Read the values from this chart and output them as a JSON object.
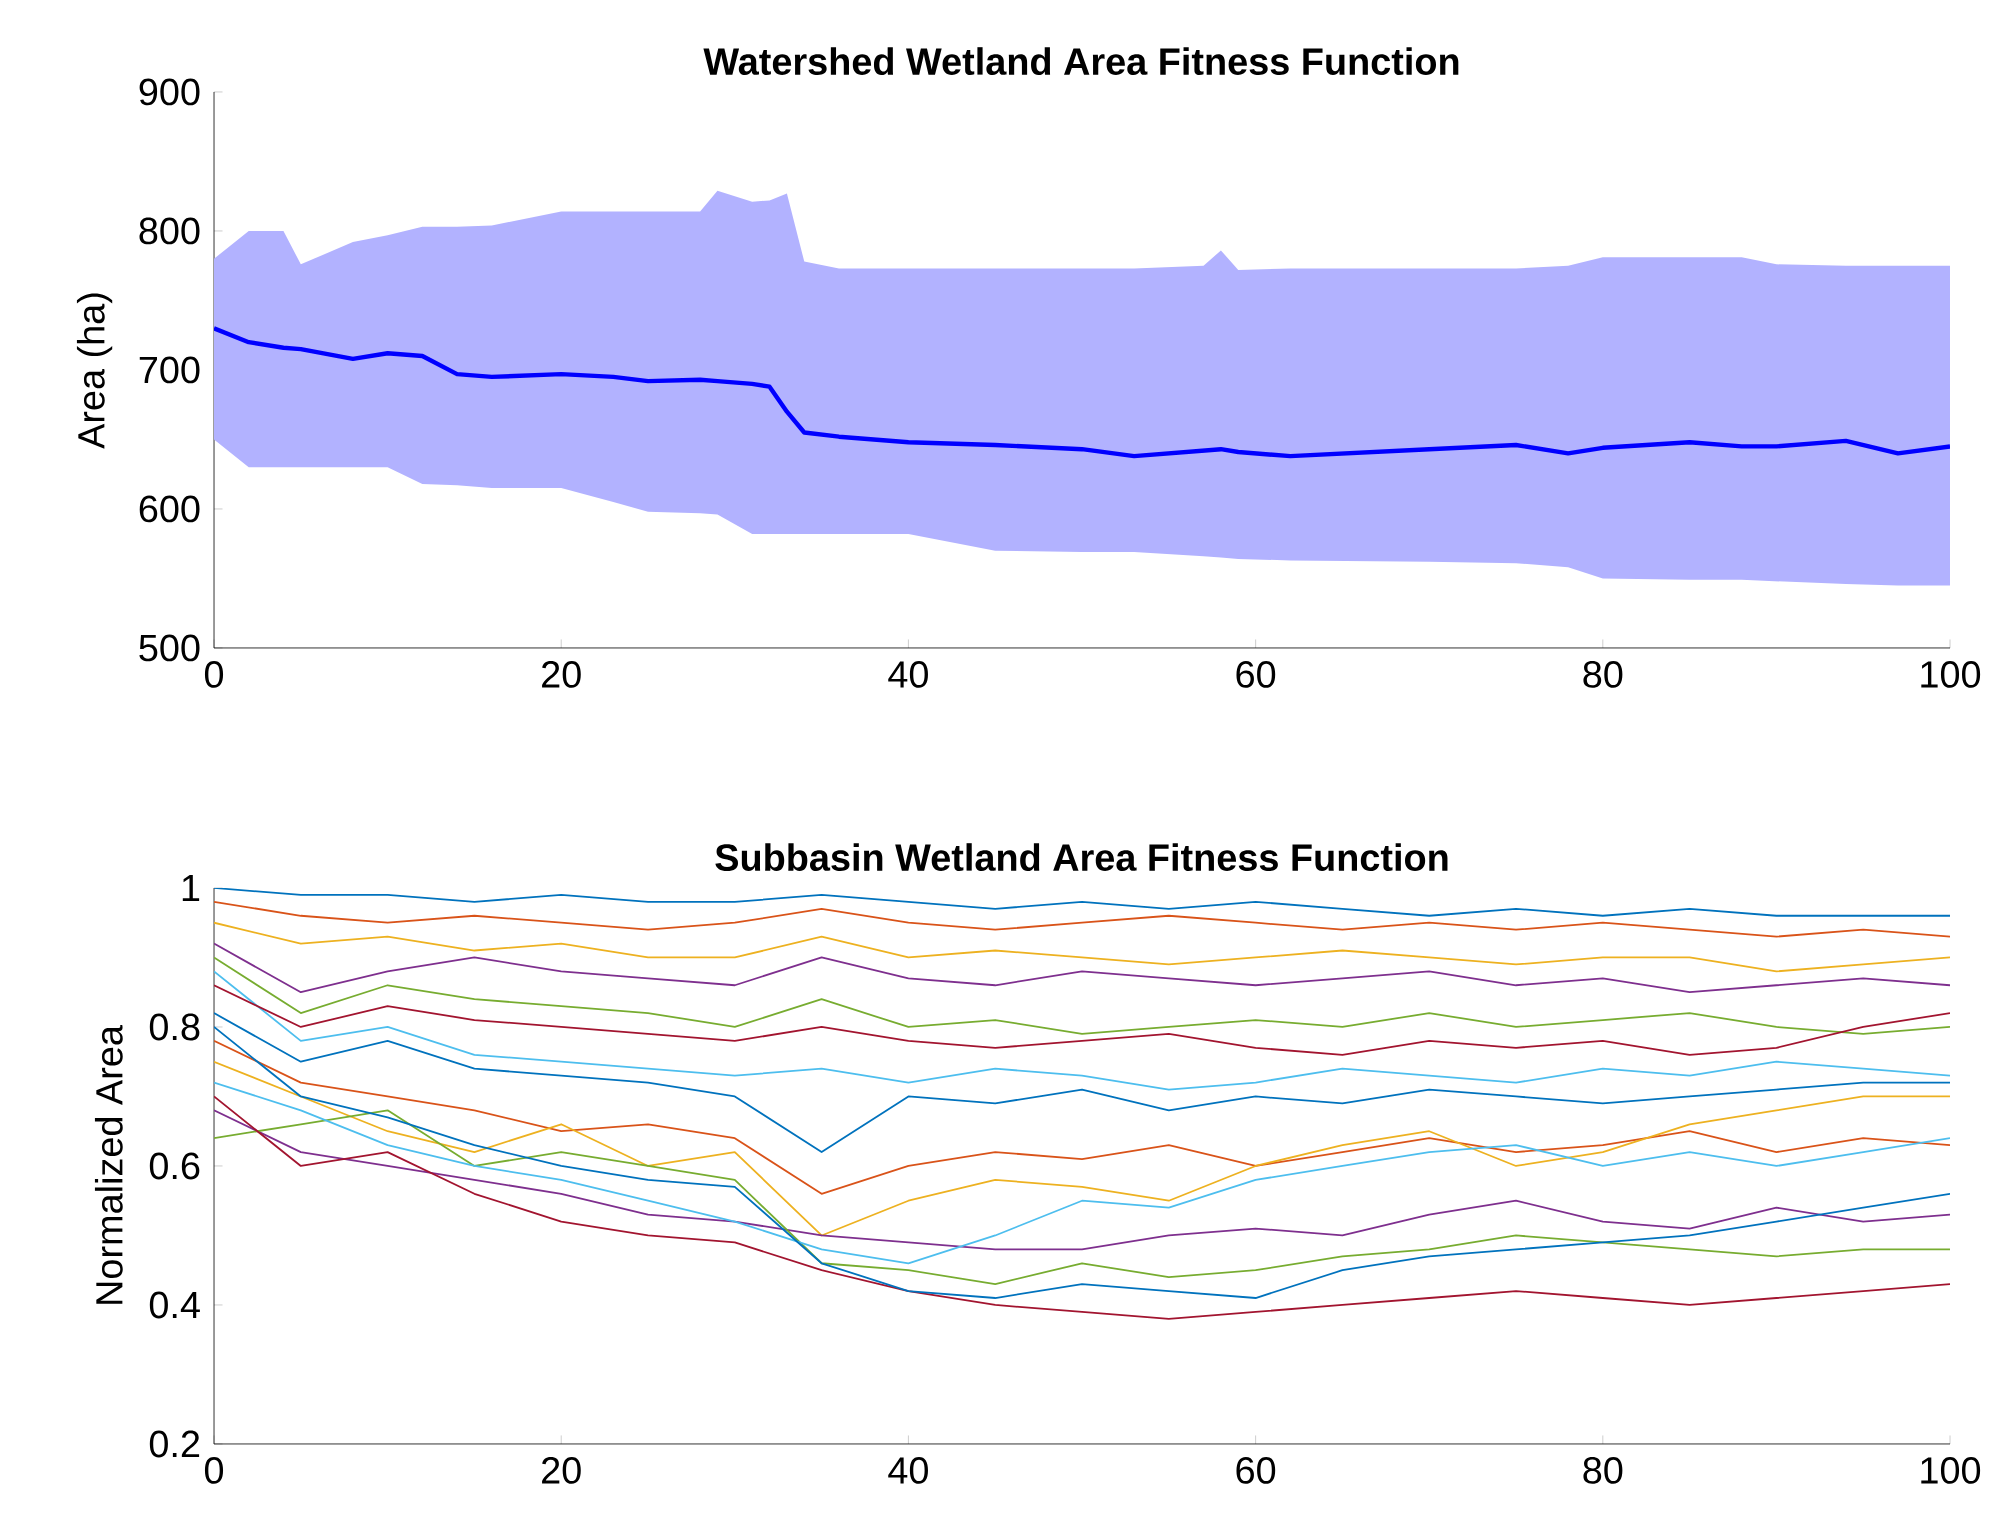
{
  "chart_data": [
    {
      "type": "line",
      "title": "Watershed Wetland Area Fitness Function",
      "ylabel": "Area (ha)",
      "xlim": [
        0,
        100
      ],
      "ylim": [
        500,
        900
      ],
      "xticks": [
        0,
        20,
        40,
        60,
        80,
        100
      ],
      "yticks": [
        500,
        600,
        700,
        800,
        900
      ],
      "series": [
        {
          "color": "#0000ff",
          "x": [
            0,
            2,
            4,
            5,
            8,
            10,
            12,
            14,
            16,
            20,
            23,
            25,
            28,
            29,
            31,
            32,
            33,
            34,
            36,
            40,
            45,
            50,
            53,
            57,
            58,
            59,
            62,
            70,
            75,
            78,
            80,
            85,
            88,
            90,
            94,
            97,
            100
          ],
          "values": [
            730,
            720,
            716,
            715,
            708,
            712,
            710,
            697,
            695,
            697,
            695,
            692,
            693,
            692,
            690,
            688,
            670,
            655,
            652,
            648,
            646,
            643,
            638,
            642,
            643,
            641,
            638,
            643,
            646,
            640,
            644,
            648,
            645,
            645,
            649,
            640,
            645
          ],
          "upper": [
            780,
            800,
            800,
            776,
            792,
            797,
            803,
            803,
            804,
            814,
            814,
            814,
            814,
            829,
            821,
            822,
            827,
            778,
            773,
            773,
            773,
            773,
            773,
            775,
            786,
            772,
            773,
            773,
            773,
            775,
            781,
            781,
            781,
            776,
            775,
            775,
            775
          ],
          "lower": [
            650,
            630,
            630,
            630,
            630,
            630,
            618,
            617,
            615,
            615,
            605,
            598,
            597,
            596,
            582,
            582,
            582,
            582,
            582,
            582,
            570,
            569,
            569,
            566,
            565,
            564,
            563,
            562,
            561,
            558,
            550,
            549,
            549,
            548,
            546,
            545,
            545
          ]
        }
      ]
    },
    {
      "type": "line",
      "title": "Subbasin Wetland Area Fitness Function",
      "ylabel": "Normalized Area",
      "xlim": [
        0,
        100
      ],
      "ylim": [
        0.2,
        1
      ],
      "xticks": [
        0,
        20,
        40,
        60,
        80,
        100
      ],
      "yticks": [
        0.2,
        0.4,
        0.6,
        0.8,
        1
      ],
      "x": [
        0,
        5,
        10,
        15,
        20,
        25,
        30,
        35,
        40,
        45,
        50,
        55,
        60,
        65,
        70,
        75,
        80,
        85,
        90,
        95,
        100
      ],
      "series": [
        {
          "color": "#0072bd",
          "values": [
            1.0,
            0.99,
            0.99,
            0.98,
            0.99,
            0.98,
            0.98,
            0.99,
            0.98,
            0.97,
            0.98,
            0.97,
            0.98,
            0.97,
            0.96,
            0.97,
            0.96,
            0.97,
            0.96,
            0.96,
            0.96
          ]
        },
        {
          "color": "#d95319",
          "values": [
            0.98,
            0.96,
            0.95,
            0.96,
            0.95,
            0.94,
            0.95,
            0.97,
            0.95,
            0.94,
            0.95,
            0.96,
            0.95,
            0.94,
            0.95,
            0.94,
            0.95,
            0.94,
            0.93,
            0.94,
            0.93
          ]
        },
        {
          "color": "#edb120",
          "values": [
            0.95,
            0.92,
            0.93,
            0.91,
            0.92,
            0.9,
            0.9,
            0.93,
            0.9,
            0.91,
            0.9,
            0.89,
            0.9,
            0.91,
            0.9,
            0.89,
            0.9,
            0.9,
            0.88,
            0.89,
            0.9
          ]
        },
        {
          "color": "#7e2f8e",
          "values": [
            0.92,
            0.85,
            0.88,
            0.9,
            0.88,
            0.87,
            0.86,
            0.9,
            0.87,
            0.86,
            0.88,
            0.87,
            0.86,
            0.87,
            0.88,
            0.86,
            0.87,
            0.85,
            0.86,
            0.87,
            0.86
          ]
        },
        {
          "color": "#77ac30",
          "values": [
            0.9,
            0.82,
            0.86,
            0.84,
            0.83,
            0.82,
            0.8,
            0.84,
            0.8,
            0.81,
            0.79,
            0.8,
            0.81,
            0.8,
            0.82,
            0.8,
            0.81,
            0.82,
            0.8,
            0.79,
            0.8
          ]
        },
        {
          "color": "#4dbeee",
          "values": [
            0.88,
            0.78,
            0.8,
            0.76,
            0.75,
            0.74,
            0.73,
            0.74,
            0.72,
            0.74,
            0.73,
            0.71,
            0.72,
            0.74,
            0.73,
            0.72,
            0.74,
            0.73,
            0.75,
            0.74,
            0.73
          ]
        },
        {
          "color": "#a2142f",
          "values": [
            0.86,
            0.8,
            0.83,
            0.81,
            0.8,
            0.79,
            0.78,
            0.8,
            0.78,
            0.77,
            0.78,
            0.79,
            0.77,
            0.76,
            0.78,
            0.77,
            0.78,
            0.76,
            0.77,
            0.8,
            0.82
          ]
        },
        {
          "color": "#0072bd",
          "values": [
            0.82,
            0.75,
            0.78,
            0.74,
            0.73,
            0.72,
            0.7,
            0.62,
            0.7,
            0.69,
            0.71,
            0.68,
            0.7,
            0.69,
            0.71,
            0.7,
            0.69,
            0.7,
            0.71,
            0.72,
            0.72
          ]
        },
        {
          "color": "#d95319",
          "values": [
            0.78,
            0.72,
            0.7,
            0.68,
            0.65,
            0.66,
            0.64,
            0.56,
            0.6,
            0.62,
            0.61,
            0.63,
            0.6,
            0.62,
            0.64,
            0.62,
            0.63,
            0.65,
            0.62,
            0.64,
            0.63
          ]
        },
        {
          "color": "#edb120",
          "values": [
            0.75,
            0.7,
            0.65,
            0.62,
            0.66,
            0.6,
            0.62,
            0.5,
            0.55,
            0.58,
            0.57,
            0.55,
            0.6,
            0.63,
            0.65,
            0.6,
            0.62,
            0.66,
            0.68,
            0.7,
            0.7
          ]
        },
        {
          "color": "#7e2f8e",
          "values": [
            0.68,
            0.62,
            0.6,
            0.58,
            0.56,
            0.53,
            0.52,
            0.5,
            0.49,
            0.48,
            0.48,
            0.5,
            0.51,
            0.5,
            0.53,
            0.55,
            0.52,
            0.51,
            0.54,
            0.52,
            0.53
          ]
        },
        {
          "color": "#77ac30",
          "values": [
            0.64,
            0.66,
            0.68,
            0.6,
            0.62,
            0.6,
            0.58,
            0.46,
            0.45,
            0.43,
            0.46,
            0.44,
            0.45,
            0.47,
            0.48,
            0.5,
            0.49,
            0.48,
            0.47,
            0.48,
            0.48
          ]
        },
        {
          "color": "#4dbeee",
          "values": [
            0.72,
            0.68,
            0.63,
            0.6,
            0.58,
            0.55,
            0.52,
            0.48,
            0.46,
            0.5,
            0.55,
            0.54,
            0.58,
            0.6,
            0.62,
            0.63,
            0.6,
            0.62,
            0.6,
            0.62,
            0.64
          ]
        },
        {
          "color": "#a2142f",
          "values": [
            0.7,
            0.6,
            0.62,
            0.56,
            0.52,
            0.5,
            0.49,
            0.45,
            0.42,
            0.4,
            0.39,
            0.38,
            0.39,
            0.4,
            0.41,
            0.42,
            0.41,
            0.4,
            0.41,
            0.42,
            0.43
          ]
        },
        {
          "color": "#0072bd",
          "values": [
            0.8,
            0.7,
            0.67,
            0.63,
            0.6,
            0.58,
            0.57,
            0.46,
            0.42,
            0.41,
            0.43,
            0.42,
            0.41,
            0.45,
            0.47,
            0.48,
            0.49,
            0.5,
            0.52,
            0.54,
            0.56
          ]
        }
      ]
    }
  ]
}
